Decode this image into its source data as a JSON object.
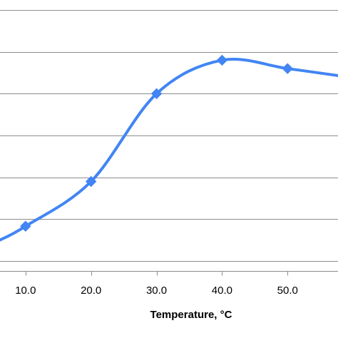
{
  "chart_data": {
    "type": "line",
    "title": "",
    "xlabel": "Temperature, °C",
    "ylabel": "",
    "x_tick_labels": [
      "10.0",
      "20.0",
      "30.0",
      "40.0",
      "50.0"
    ],
    "x_ticks": [
      10,
      20,
      30,
      40,
      50
    ],
    "xlim": [
      6.1,
      57.7
    ],
    "ylim": [
      -0.24,
      6.24
    ],
    "grid": true,
    "series": [
      {
        "color": "#4285f4",
        "x": [
          10,
          20,
          30,
          40,
          50
        ],
        "y": [
          0.83,
          1.9,
          4.0,
          4.8,
          4.6
        ],
        "marker": "diamond"
      }
    ]
  }
}
